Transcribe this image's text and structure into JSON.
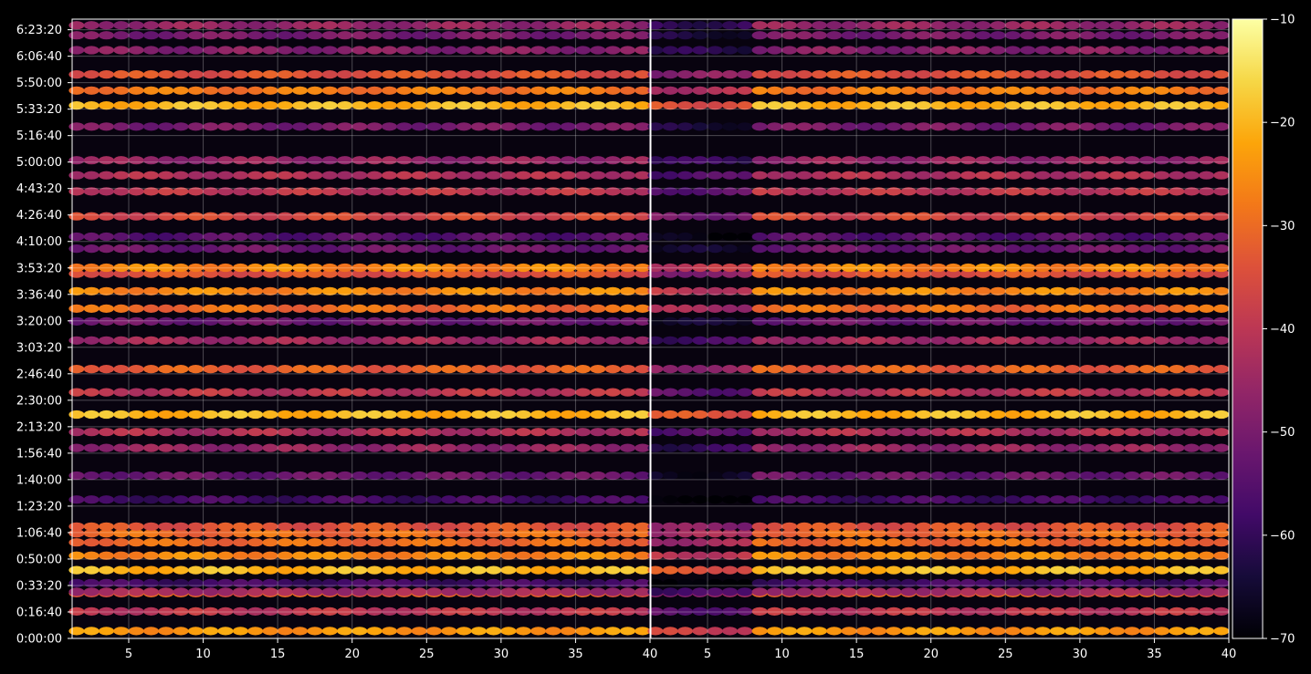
{
  "chart_data": {
    "type": "heatmap",
    "title": "",
    "xlabel": "",
    "ylabel": "",
    "grid": true,
    "background_color": "#000000",
    "grid_color": "#ffffff",
    "panels": [
      {
        "name": "",
        "x_range": [
          1.2,
          40
        ],
        "x_ticks": [
          5,
          10,
          15,
          20,
          25,
          30,
          35,
          40
        ]
      },
      {
        "name": "",
        "x_range": [
          1.2,
          40
        ],
        "x_ticks": [
          5,
          10,
          15,
          20,
          25,
          30,
          35,
          40
        ]
      }
    ],
    "y_range_seconds": [
      0,
      23400
    ],
    "y_ticks": [
      "0:00:00",
      "0:16:40",
      "0:33:20",
      "0:50:00",
      "1:06:40",
      "1:23:20",
      "1:40:00",
      "1:56:40",
      "2:13:20",
      "2:30:00",
      "2:46:40",
      "3:03:20",
      "3:20:00",
      "3:36:40",
      "3:53:20",
      "4:10:00",
      "4:26:40",
      "4:43:20",
      "5:00:00",
      "5:16:40",
      "5:33:20",
      "5:50:00",
      "6:06:40",
      "6:23:20"
    ],
    "colorbar": {
      "colormap": "inferno",
      "range": [
        -70,
        -10
      ],
      "ticks": [
        "−70",
        "−60",
        "−50",
        "−40",
        "−30",
        "−20",
        "−10"
      ]
    },
    "row_levels": [
      {
        "t": 280,
        "level": -24
      },
      {
        "t": 1020,
        "level": -40
      },
      {
        "t": 1710,
        "level": -32
      },
      {
        "t": 1760,
        "level": -44
      },
      {
        "t": 2090,
        "level": -58
      },
      {
        "t": 2580,
        "level": -20
      },
      {
        "t": 3130,
        "level": -26
      },
      {
        "t": 3630,
        "level": -30
      },
      {
        "t": 3970,
        "level": -30
      },
      {
        "t": 4230,
        "level": -34
      },
      {
        "t": 5250,
        "level": -58
      },
      {
        "t": 6150,
        "level": -52
      },
      {
        "t": 7200,
        "level": -46
      },
      {
        "t": 7800,
        "level": -42
      },
      {
        "t": 8460,
        "level": -20
      },
      {
        "t": 9300,
        "level": -40
      },
      {
        "t": 10180,
        "level": -32
      },
      {
        "t": 11260,
        "level": -44
      },
      {
        "t": 11980,
        "level": -52
      },
      {
        "t": 12460,
        "level": -30
      },
      {
        "t": 13120,
        "level": -26
      },
      {
        "t": 13780,
        "level": -34
      },
      {
        "t": 14010,
        "level": -26
      },
      {
        "t": 14730,
        "level": -52
      },
      {
        "t": 15180,
        "level": -55
      },
      {
        "t": 15950,
        "level": -36
      },
      {
        "t": 16890,
        "level": -40
      },
      {
        "t": 17500,
        "level": -42
      },
      {
        "t": 18070,
        "level": -46
      },
      {
        "t": 19340,
        "level": -50
      },
      {
        "t": 20140,
        "level": -20
      },
      {
        "t": 20700,
        "level": -28
      },
      {
        "t": 21310,
        "level": -34
      },
      {
        "t": 22230,
        "level": -48
      },
      {
        "t": 22790,
        "level": -50
      },
      {
        "t": 23170,
        "level": -46
      }
    ]
  }
}
